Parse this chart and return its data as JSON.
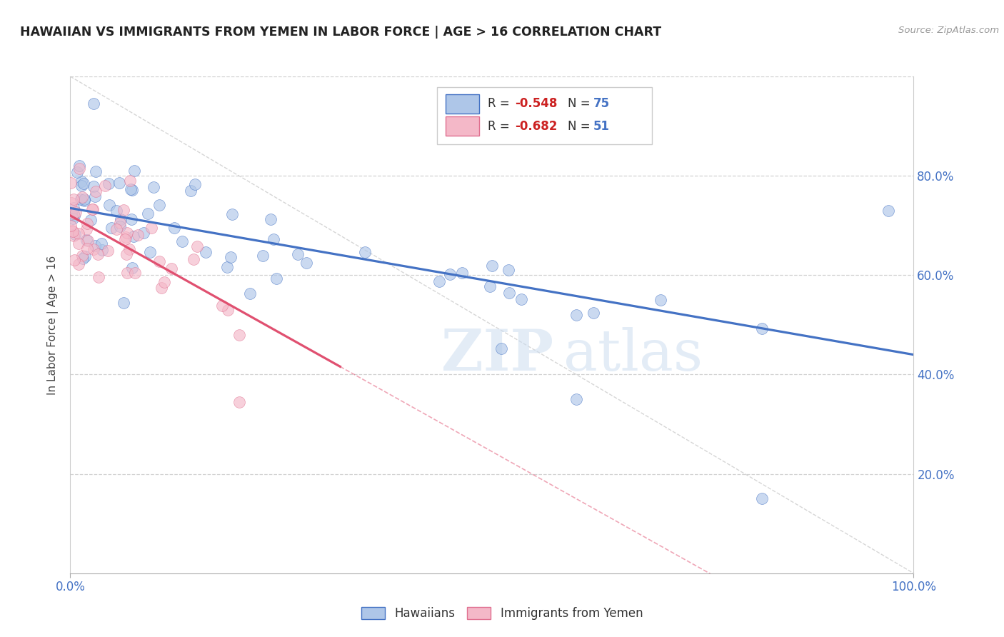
{
  "title": "HAWAIIAN VS IMMIGRANTS FROM YEMEN IN LABOR FORCE | AGE > 16 CORRELATION CHART",
  "source": "Source: ZipAtlas.com",
  "ylabel": "In Labor Force | Age > 16",
  "xlim": [
    0.0,
    1.0
  ],
  "ylim": [
    0.0,
    1.0
  ],
  "xtick_positions": [
    0.0,
    1.0
  ],
  "xtick_labels": [
    "0.0%",
    "100.0%"
  ],
  "ytick_positions": [
    0.2,
    0.4,
    0.6,
    0.8
  ],
  "ytick_labels_right": [
    "20.0%",
    "40.0%",
    "60.0%",
    "80.0%"
  ],
  "hawaii_scatter_color": "#aec6e8",
  "hawaii_edge_color": "#4472c4",
  "yemen_scatter_color": "#f4b8c8",
  "yemen_edge_color": "#e07090",
  "hawaii_line_color": "#4472c4",
  "yemen_line_color": "#e05070",
  "diag_line_color": "#cccccc",
  "legend_label_hawaii": "Hawaiians",
  "legend_label_yemen": "Immigrants from Yemen",
  "watermark_zip": "ZIP",
  "watermark_atlas": "atlas",
  "hawaii_R": -0.548,
  "hawaii_N": 75,
  "yemen_R": -0.682,
  "yemen_N": 51,
  "hawaii_intercept": 0.735,
  "hawaii_slope": -0.295,
  "yemen_intercept": 0.72,
  "yemen_slope": -0.95,
  "hawaii_seed": 42,
  "yemen_seed": 99
}
